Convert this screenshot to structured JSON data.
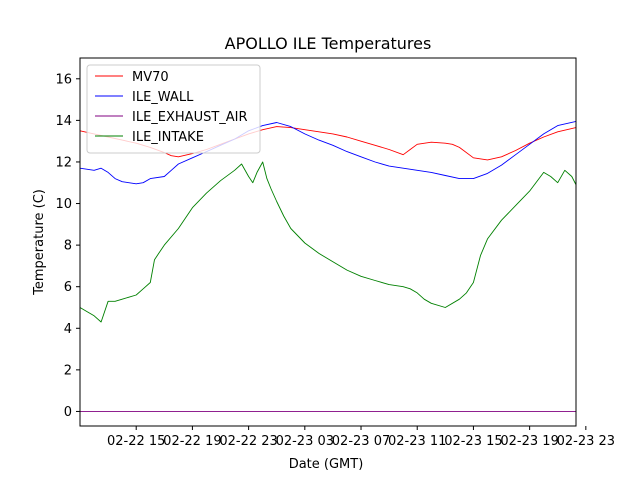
{
  "chart_data": {
    "type": "line",
    "title": "APOLLO ILE Temperatures",
    "xlabel": "Date (GMT)",
    "ylabel": "Temperature (C)",
    "xlim": [
      11.0,
      46.3
    ],
    "ylim": [
      -0.7,
      17.0
    ],
    "x_unit": "hours since 02-22 00:00 GMT",
    "xticks": [
      {
        "value": 15,
        "label": "02-22 15"
      },
      {
        "value": 19,
        "label": "02-22 19"
      },
      {
        "value": 23,
        "label": "02-22 23"
      },
      {
        "value": 27,
        "label": "02-23 03"
      },
      {
        "value": 31,
        "label": "02-23 07"
      },
      {
        "value": 35,
        "label": "02-23 11"
      },
      {
        "value": 39,
        "label": "02-23 15"
      },
      {
        "value": 43,
        "label": "02-23 19"
      },
      {
        "value": 47,
        "label": "02-23 23"
      }
    ],
    "yticks": [
      0,
      2,
      4,
      6,
      8,
      10,
      12,
      14,
      16
    ],
    "grid": false,
    "legend_position": "top-left",
    "series": [
      {
        "name": "MV70",
        "color": "#ff0000",
        "x": [
          11.0,
          12.0,
          13.0,
          14.0,
          15.0,
          16.0,
          17.0,
          17.5,
          18.0,
          19.0,
          20.0,
          21.0,
          22.0,
          23.0,
          24.0,
          25.0,
          26.0,
          27.0,
          28.0,
          29.0,
          30.0,
          31.0,
          32.0,
          33.0,
          34.0,
          34.5,
          35.0,
          36.0,
          37.0,
          37.5,
          38.0,
          39.0,
          40.0,
          41.0,
          42.0,
          43.0,
          44.0,
          45.0,
          46.3
        ],
        "y": [
          13.5,
          13.35,
          13.2,
          13.05,
          12.9,
          12.7,
          12.45,
          12.3,
          12.25,
          12.4,
          12.6,
          12.85,
          13.1,
          13.35,
          13.55,
          13.7,
          13.65,
          13.55,
          13.45,
          13.35,
          13.2,
          13.0,
          12.8,
          12.6,
          12.35,
          12.6,
          12.85,
          12.95,
          12.9,
          12.85,
          12.7,
          12.2,
          12.1,
          12.25,
          12.55,
          12.9,
          13.2,
          13.45,
          13.65
        ]
      },
      {
        "name": "ILE_WALL",
        "color": "#0000ff",
        "x": [
          11.0,
          12.0,
          12.5,
          13.0,
          13.5,
          14.0,
          15.0,
          15.5,
          16.0,
          17.0,
          17.5,
          18.0,
          19.0,
          20.0,
          21.0,
          22.0,
          23.0,
          24.0,
          25.0,
          26.0,
          27.0,
          28.0,
          29.0,
          30.0,
          31.0,
          32.0,
          33.0,
          34.0,
          35.0,
          36.0,
          37.0,
          38.0,
          39.0,
          40.0,
          41.0,
          42.0,
          43.0,
          44.0,
          45.0,
          46.3
        ],
        "y": [
          11.7,
          11.6,
          11.7,
          11.5,
          11.2,
          11.05,
          10.95,
          11.0,
          11.2,
          11.3,
          11.6,
          11.9,
          12.2,
          12.5,
          12.8,
          13.1,
          13.5,
          13.75,
          13.9,
          13.7,
          13.35,
          13.05,
          12.8,
          12.5,
          12.25,
          12.0,
          11.8,
          11.7,
          11.6,
          11.5,
          11.35,
          11.2,
          11.2,
          11.45,
          11.85,
          12.35,
          12.85,
          13.35,
          13.75,
          13.95
        ]
      },
      {
        "name": "ILE_EXHAUST_AIR",
        "color": "#800080",
        "x": [
          11.0,
          46.3
        ],
        "y": [
          0.0,
          0.0
        ]
      },
      {
        "name": "ILE_INTAKE",
        "color": "#008000",
        "x": [
          11.0,
          11.5,
          12.0,
          12.5,
          13.0,
          13.5,
          14.0,
          15.0,
          15.5,
          16.0,
          16.3,
          16.6,
          17.0,
          18.0,
          19.0,
          20.0,
          21.0,
          22.0,
          22.5,
          23.0,
          23.3,
          23.6,
          24.0,
          24.3,
          24.6,
          25.0,
          25.5,
          26.0,
          27.0,
          28.0,
          29.0,
          30.0,
          31.0,
          32.0,
          33.0,
          34.0,
          34.5,
          35.0,
          35.5,
          36.0,
          37.0,
          38.0,
          38.5,
          39.0,
          39.5,
          40.0,
          41.0,
          42.0,
          43.0,
          44.0,
          44.5,
          45.0,
          45.5,
          46.0,
          46.3
        ],
        "y": [
          5.0,
          4.8,
          4.6,
          4.3,
          5.3,
          5.3,
          5.4,
          5.6,
          5.9,
          6.2,
          7.3,
          7.6,
          8.0,
          8.8,
          9.8,
          10.5,
          11.1,
          11.6,
          11.9,
          11.3,
          11.0,
          11.5,
          12.0,
          11.2,
          10.7,
          10.1,
          9.4,
          8.8,
          8.1,
          7.6,
          7.2,
          6.8,
          6.5,
          6.3,
          6.1,
          6.0,
          5.9,
          5.7,
          5.4,
          5.2,
          5.0,
          5.4,
          5.7,
          6.2,
          7.5,
          8.3,
          9.2,
          9.9,
          10.6,
          11.5,
          11.3,
          11.0,
          11.6,
          11.3,
          10.9
        ]
      }
    ]
  }
}
